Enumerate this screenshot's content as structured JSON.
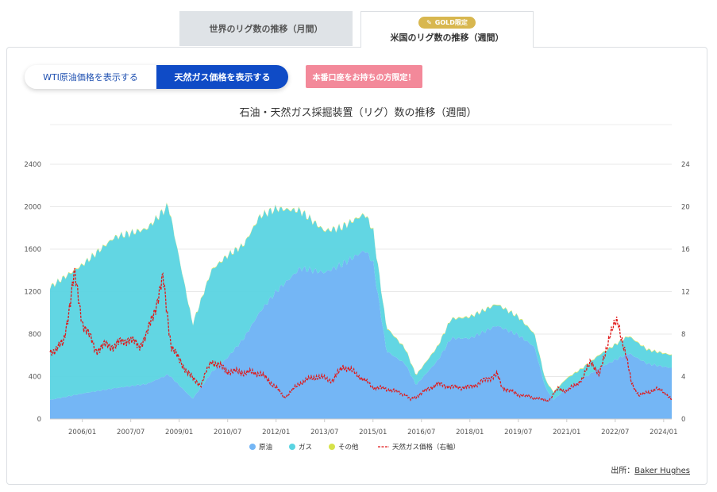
{
  "tabs": {
    "monthly": "世界のリグ数の推移（月間）",
    "weekly": "米国のリグ数の推移（週間）",
    "gold_badge": "GOLD限定"
  },
  "toggle": {
    "wti": "WTI原油価格を表示する",
    "gas": "天然ガス価格を表示する"
  },
  "promo": "本番口座をお持ちの方限定！",
  "source_prefix": "出所：",
  "source_name": "Baker Hughes",
  "colors": {
    "oil": "#74b6f5",
    "gas": "#5ad4e2",
    "other": "#d6e24a",
    "price": "#e0191a"
  },
  "chart_data": {
    "type": "area",
    "title": "石油・天然ガス採掘装置（リグ）数の推移（週間）",
    "x_tick_labels": [
      "2006/01",
      "2007/07",
      "2009/01",
      "2010/07",
      "2012/01",
      "2013/07",
      "2015/01",
      "2016/07",
      "2018/01",
      "2019/07",
      "2021/01",
      "2022/07",
      "2024/01"
    ],
    "x_range": [
      "2005/01",
      "2024/04"
    ],
    "y_left": {
      "ticks": [
        "0",
        "400",
        "800",
        "1200",
        "1600",
        "2000",
        "2400"
      ],
      "range": [
        0,
        2400
      ]
    },
    "y_right": {
      "ticks": [
        "0",
        "4",
        "8",
        "12",
        "16",
        "20",
        "24"
      ],
      "range": [
        0,
        24
      ]
    },
    "legend": {
      "position": "bottom",
      "items": [
        "原油",
        "ガス",
        "その他",
        "天然ガス価格（右軸）"
      ]
    },
    "series": [
      {
        "name": "原油",
        "type": "area",
        "stack": "rigs",
        "x": [
          "2005/01",
          "2006/01",
          "2007/01",
          "2008/01",
          "2008/09",
          "2009/06",
          "2010/01",
          "2010/07",
          "2011/01",
          "2011/07",
          "2012/01",
          "2012/10",
          "2013/07",
          "2014/01",
          "2014/10",
          "2015/01",
          "2015/06",
          "2016/01",
          "2016/05",
          "2017/01",
          "2017/06",
          "2018/01",
          "2018/11",
          "2019/07",
          "2020/01",
          "2020/05",
          "2020/08",
          "2021/01",
          "2021/07",
          "2022/01",
          "2022/12",
          "2023/07",
          "2024/04"
        ],
        "values": [
          180,
          240,
          290,
          330,
          420,
          190,
          440,
          580,
          760,
          1010,
          1200,
          1420,
          1380,
          1450,
          1590,
          1480,
          640,
          520,
          320,
          550,
          760,
          760,
          880,
          790,
          680,
          300,
          180,
          290,
          380,
          480,
          620,
          520,
          480
        ]
      },
      {
        "name": "ガス",
        "type": "area",
        "stack": "rigs",
        "x": [
          "2005/01",
          "2006/01",
          "2007/01",
          "2008/01",
          "2008/09",
          "2009/06",
          "2010/01",
          "2010/07",
          "2011/01",
          "2011/07",
          "2012/01",
          "2012/10",
          "2013/07",
          "2014/01",
          "2014/10",
          "2015/01",
          "2015/06",
          "2016/01",
          "2016/05",
          "2017/01",
          "2017/06",
          "2018/01",
          "2018/11",
          "2019/07",
          "2020/01",
          "2020/05",
          "2020/08",
          "2021/01",
          "2021/07",
          "2022/01",
          "2022/12",
          "2023/07",
          "2024/04"
        ],
        "values": [
          1060,
          1210,
          1420,
          1460,
          1590,
          700,
          960,
          960,
          880,
          900,
          780,
          540,
          390,
          350,
          340,
          300,
          220,
          140,
          90,
          130,
          180,
          200,
          200,
          170,
          120,
          70,
          70,
          90,
          100,
          120,
          160,
          130,
          120
        ]
      },
      {
        "name": "その他",
        "type": "area",
        "stack": "rigs",
        "x": [
          "2005/01",
          "2024/04"
        ],
        "values": [
          5,
          5
        ]
      },
      {
        "name": "天然ガス価格（右軸）",
        "type": "line",
        "axis": "right",
        "x": [
          "2005/01",
          "2005/06",
          "2005/10",
          "2006/01",
          "2006/06",
          "2006/10",
          "2007/01",
          "2007/06",
          "2007/10",
          "2008/01",
          "2008/07",
          "2008/10",
          "2009/01",
          "2009/06",
          "2009/09",
          "2010/01",
          "2010/07",
          "2011/01",
          "2011/07",
          "2012/01",
          "2012/04",
          "2012/10",
          "2013/04",
          "2013/10",
          "2014/02",
          "2014/07",
          "2015/01",
          "2015/07",
          "2016/01",
          "2016/03",
          "2016/10",
          "2017/01",
          "2017/07",
          "2018/01",
          "2018/11",
          "2019/01",
          "2019/07",
          "2020/01",
          "2020/06",
          "2020/10",
          "2021/01",
          "2021/07",
          "2021/10",
          "2022/01",
          "2022/05",
          "2022/08",
          "2022/11",
          "2023/01",
          "2023/04",
          "2023/10",
          "2024/01",
          "2024/04"
        ],
        "values": [
          6.3,
          7.1,
          13.6,
          9.2,
          6.5,
          7.0,
          6.9,
          7.6,
          6.9,
          7.9,
          13.1,
          7.0,
          5.5,
          3.8,
          3.2,
          5.5,
          4.5,
          4.4,
          4.3,
          3.0,
          2.0,
          3.4,
          4.0,
          3.6,
          5.0,
          4.2,
          3.0,
          2.8,
          2.3,
          1.8,
          2.9,
          3.3,
          3.0,
          3.0,
          4.2,
          3.0,
          2.3,
          2.0,
          1.7,
          2.9,
          2.6,
          3.8,
          5.6,
          4.0,
          8.0,
          9.2,
          6.0,
          3.4,
          2.2,
          2.8,
          2.6,
          1.8
        ]
      }
    ]
  }
}
